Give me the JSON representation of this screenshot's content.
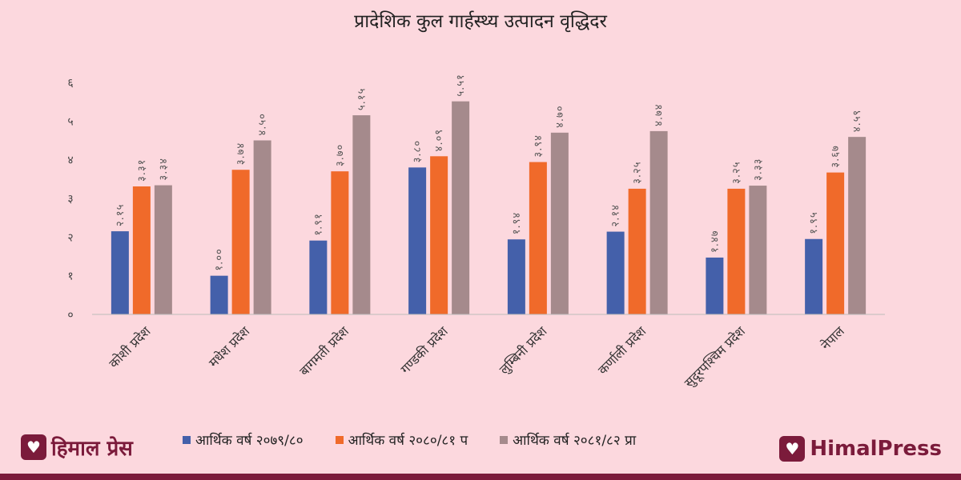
{
  "chart_data": {
    "type": "bar",
    "title": "प्रादेशिक कुल गार्हस्थ्य उत्पादन वृद्धिदर",
    "categories": [
      "कोशी प्रदेश",
      "मधेश प्रदेश",
      "बागमती प्रदेश",
      "गण्डकी प्रदेश",
      "लुम्बिनी प्रदेश",
      "कर्णाली प्रदेश",
      "सुदूरपश्चिम प्रदेश",
      "नेपाल"
    ],
    "series": [
      {
        "name": "आर्थिक वर्ष २०७९/८०",
        "color": "#4460aa",
        "values": [
          2.15,
          1.0,
          1.91,
          3.8,
          1.94,
          2.14,
          1.47,
          1.95
        ],
        "labels": [
          "२.१५",
          "१.००",
          "१.९१",
          "३.८०",
          "१.९४",
          "२.१४",
          "१.४७",
          "१.९५"
        ]
      },
      {
        "name": "आर्थिक वर्ष २०८०/८१ प",
        "color": "#f06a2a",
        "values": [
          3.31,
          3.74,
          3.7,
          4.09,
          3.94,
          3.25,
          3.25,
          3.67
        ],
        "labels": [
          "३.३१",
          "३.७४",
          "३.७०",
          "४.०९",
          "३.९४",
          "३.२५",
          "३.२५",
          "३.६७"
        ]
      },
      {
        "name": "आर्थिक वर्ष २०८१/८२ प्रा",
        "color": "#a58a8c",
        "values": [
          3.34,
          4.5,
          5.15,
          5.51,
          4.7,
          4.74,
          3.33,
          4.59
        ],
        "labels": [
          "३.३४",
          "४.५०",
          "५.१५",
          "५.५१",
          "४.७०",
          "४.७४",
          "३.३३",
          "४.५९"
        ]
      }
    ],
    "yticks": [
      "०",
      "१",
      "२",
      "३",
      "४",
      "५",
      "६"
    ],
    "ylim": [
      0,
      6
    ],
    "grid": false,
    "legend_position": "bottom"
  },
  "legend": [
    "आर्थिक वर्ष २०७९/८०",
    "आर्थिक वर्ष २०८०/८१ प",
    "आर्थिक वर्ष २०८१/८२ प्रा"
  ],
  "brand": {
    "left": "हिमाल प्रेस",
    "right": "HimalPress",
    "icon": "heart-logo-icon"
  }
}
